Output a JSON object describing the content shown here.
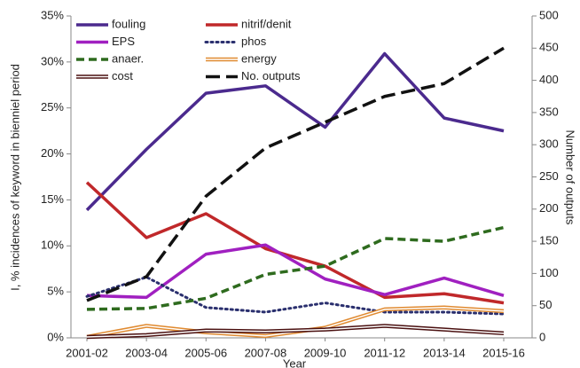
{
  "chart_data": {
    "type": "line",
    "categories": [
      "2001-02",
      "2003-04",
      "2005-06",
      "2007-08",
      "2009-10",
      "2011-12",
      "2013-14",
      "2015-16"
    ],
    "y_label": "I, % incidences of keyword in bienniel period",
    "y2_label": "Number of outputs",
    "x_label": "Year",
    "ylim": [
      0,
      35
    ],
    "yticks": [
      {
        "value": 0,
        "label": "0%"
      },
      {
        "value": 5,
        "label": "5%"
      },
      {
        "value": 10,
        "label": "10%"
      },
      {
        "value": 15,
        "label": "15%"
      },
      {
        "value": 20,
        "label": "20%"
      },
      {
        "value": 25,
        "label": "25%"
      },
      {
        "value": 30,
        "label": "30%"
      },
      {
        "value": 35,
        "label": "35%"
      }
    ],
    "y2lim": [
      0,
      500
    ],
    "y2ticks": [
      0,
      50,
      100,
      150,
      200,
      250,
      300,
      350,
      400,
      450,
      500
    ],
    "grid": false,
    "legend": "top-left",
    "series": [
      {
        "name": "fouling",
        "color": "#4b2a8e",
        "style": "solid",
        "values": [
          13.9,
          20.5,
          26.6,
          27.4,
          22.9,
          30.9,
          23.9,
          22.5
        ]
      },
      {
        "name": "nitrif/denit",
        "color": "#c0282a",
        "style": "solid",
        "values": [
          16.9,
          10.9,
          13.5,
          9.7,
          7.8,
          4.4,
          4.8,
          3.8
        ]
      },
      {
        "name": "EPS",
        "color": "#a020c0",
        "style": "solid",
        "values": [
          4.6,
          4.4,
          9.1,
          10.1,
          6.4,
          4.7,
          6.5,
          4.6
        ]
      },
      {
        "name": "phos",
        "color": "#2a2f6e",
        "style": "dotted",
        "values": [
          4.5,
          6.6,
          3.3,
          2.8,
          3.8,
          2.8,
          2.8,
          2.6
        ]
      },
      {
        "name": "anaer.",
        "color": "#2e6b1e",
        "style": "dashed",
        "values": [
          3.1,
          3.2,
          4.3,
          6.9,
          7.8,
          10.8,
          10.5,
          12.0
        ]
      },
      {
        "name": "energy",
        "color": "#e08a30",
        "style": "double",
        "values": [
          0.1,
          1.3,
          0.6,
          0.2,
          1.1,
          3.1,
          3.3,
          2.9
        ]
      },
      {
        "name": "cost",
        "color": "#4a1010",
        "style": "double",
        "values": [
          0.1,
          0.3,
          0.8,
          0.7,
          0.9,
          1.3,
          0.9,
          0.5
        ]
      },
      {
        "name": "No. outputs",
        "color": "#111111",
        "style": "longdash",
        "axis": "y2",
        "values": [
          58,
          95,
          220,
          295,
          335,
          375,
          395,
          450
        ]
      }
    ]
  }
}
